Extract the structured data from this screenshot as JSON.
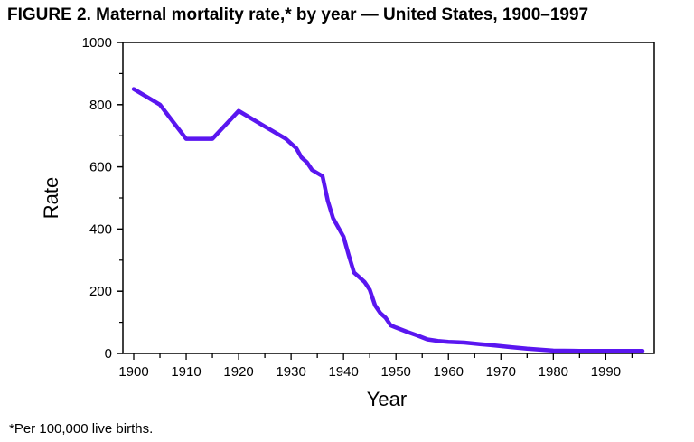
{
  "title": "FIGURE 2. Maternal mortality rate,* by year — United States, 1900–1997",
  "footnote": "*Per 100,000 live births.",
  "chart_data": {
    "type": "line",
    "title": "FIGURE 2. Maternal mortality rate,* by year — United States, 1900–1997",
    "xlabel": "Year",
    "ylabel": "Rate",
    "xlim": [
      1900,
      1997
    ],
    "ylim": [
      0,
      1000
    ],
    "x_ticks": [
      1900,
      1910,
      1920,
      1930,
      1940,
      1950,
      1960,
      1970,
      1980,
      1990
    ],
    "y_ticks": [
      0,
      200,
      400,
      600,
      800,
      1000
    ],
    "grid": false,
    "line_color": "#5a16f0",
    "series": [
      {
        "x": [
          1900,
          1905,
          1910,
          1915,
          1920,
          1925,
          1929,
          1930,
          1931,
          1932,
          1933,
          1934,
          1935,
          1936,
          1937,
          1938,
          1939,
          1940,
          1941,
          1942,
          1943,
          1944,
          1945,
          1946,
          1947,
          1948,
          1949,
          1950,
          1952,
          1954,
          1956,
          1958,
          1960,
          1963,
          1966,
          1968,
          1972,
          1975,
          1980,
          1985,
          1990,
          1997
        ],
        "y": [
          850,
          800,
          690,
          690,
          780,
          730,
          690,
          675,
          660,
          630,
          615,
          590,
          580,
          570,
          490,
          435,
          405,
          375,
          315,
          260,
          245,
          230,
          205,
          155,
          130,
          115,
          90,
          83,
          70,
          58,
          45,
          40,
          37,
          35,
          30,
          27,
          20,
          15,
          9,
          8,
          8,
          8
        ]
      }
    ]
  }
}
